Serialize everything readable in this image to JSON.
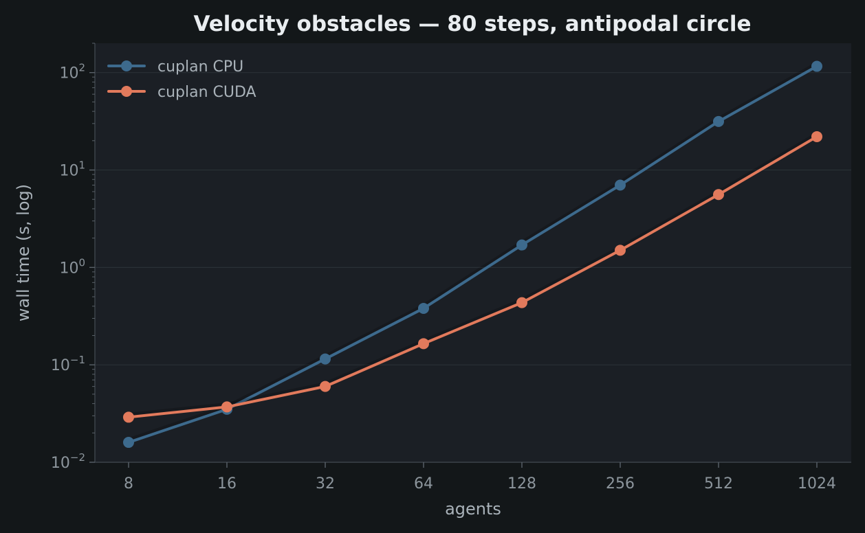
{
  "chart_data": {
    "type": "line",
    "title": "Velocity obstacles — 80 steps, antipodal circle",
    "xlabel": "agents",
    "ylabel": "wall time (s, log)",
    "categories": [
      "8",
      "16",
      "32",
      "64",
      "128",
      "256",
      "512",
      "1024"
    ],
    "x": [
      8,
      16,
      32,
      64,
      128,
      256,
      512,
      1024
    ],
    "x_scale": "log2",
    "y_scale": "log10",
    "ylim": [
      0.01,
      200
    ],
    "y_ticks": [
      {
        "base": "10",
        "exp": "−2",
        "value": 0.01
      },
      {
        "base": "10",
        "exp": "−1",
        "value": 0.1
      },
      {
        "base": "10",
        "exp": "0",
        "value": 1
      },
      {
        "base": "10",
        "exp": "1",
        "value": 10
      },
      {
        "base": "10",
        "exp": "2",
        "value": 100
      }
    ],
    "grid": "horizontal",
    "legend_position": "top-left",
    "series": [
      {
        "name": "cuplan CPU",
        "color": "#3d6a8d",
        "values": [
          0.016,
          0.035,
          0.115,
          0.38,
          1.7,
          7.0,
          31.5,
          116
        ]
      },
      {
        "name": "cuplan CUDA",
        "color": "#e27a5c",
        "values": [
          0.029,
          0.037,
          0.06,
          0.165,
          0.435,
          1.5,
          5.6,
          22
        ]
      }
    ],
    "colors": {
      "page_background": "#131719",
      "plot_background": "#1b1f25",
      "grid": "#2a3036",
      "axis": "#3c434a"
    }
  }
}
